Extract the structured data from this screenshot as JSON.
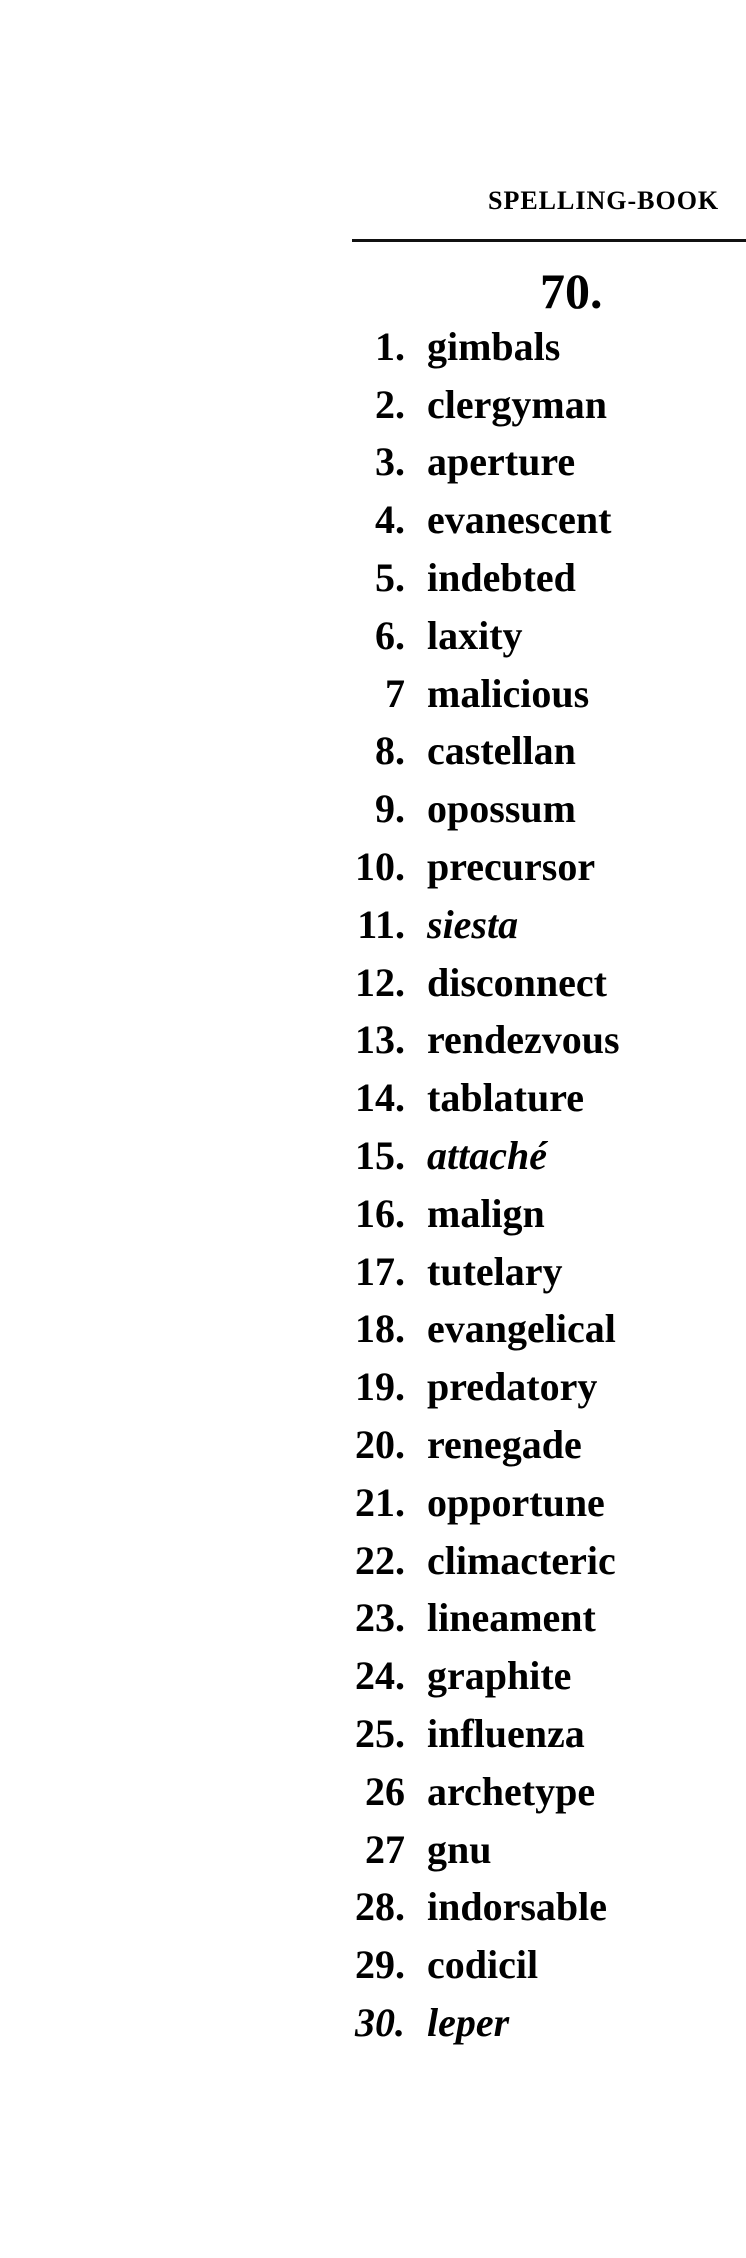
{
  "header": {
    "running_title": "SPELLING-BOOK"
  },
  "section": {
    "number": "70."
  },
  "items": [
    {
      "num": "1.",
      "word": "gimbals"
    },
    {
      "num": "2.",
      "word": "clergyman"
    },
    {
      "num": "3.",
      "word": "aperture"
    },
    {
      "num": "4.",
      "word": "evanescent"
    },
    {
      "num": "5.",
      "word": "indebted"
    },
    {
      "num": "6.",
      "word": "laxity"
    },
    {
      "num": "7",
      "word": "malicious"
    },
    {
      "num": "8.",
      "word": "castellan"
    },
    {
      "num": "9.",
      "word": "opossum"
    },
    {
      "num": "10.",
      "word": "precursor"
    },
    {
      "num": "11.",
      "word": "siesta",
      "italic": true
    },
    {
      "num": "12.",
      "word": "disconnect"
    },
    {
      "num": "13.",
      "word": "rendezvous"
    },
    {
      "num": "14.",
      "word": "tablature"
    },
    {
      "num": "15.",
      "word": "attaché",
      "italic": true
    },
    {
      "num": "16.",
      "word": "malign"
    },
    {
      "num": "17.",
      "word": "tutelary"
    },
    {
      "num": "18.",
      "word": "evangelical"
    },
    {
      "num": "19.",
      "word": "predatory"
    },
    {
      "num": "20.",
      "word": "renegade"
    },
    {
      "num": "21.",
      "word": "opportune"
    },
    {
      "num": "22.",
      "word": "climacteric"
    },
    {
      "num": "23.",
      "word": "lineament"
    },
    {
      "num": "24.",
      "word": "graphite"
    },
    {
      "num": "25.",
      "word": "influenza"
    },
    {
      "num": "26",
      "word": "archetype"
    },
    {
      "num": "27",
      "word": "gnu"
    },
    {
      "num": "28.",
      "word": "indorsable"
    },
    {
      "num": "29.",
      "word": "codicil"
    },
    {
      "num": "30.",
      "word": "leper",
      "italic": true,
      "italic_num": true
    }
  ]
}
